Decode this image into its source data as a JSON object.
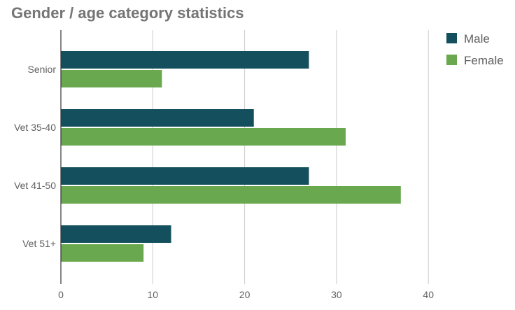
{
  "chart_data": {
    "type": "bar",
    "orientation": "horizontal",
    "title": "Gender / age category statistics",
    "categories": [
      "Senior",
      "Vet 35-40",
      "Vet 41-50",
      "Vet 51+"
    ],
    "series": [
      {
        "name": "Male",
        "values": [
          27,
          21,
          27,
          12
        ],
        "color": "#134f5c"
      },
      {
        "name": "Female",
        "values": [
          11,
          31,
          37,
          9
        ],
        "color": "#6aa84f"
      }
    ],
    "xlim": [
      0,
      40
    ],
    "xticks": [
      0,
      10,
      20,
      30,
      40
    ],
    "grid": true,
    "legend_position": "right"
  }
}
